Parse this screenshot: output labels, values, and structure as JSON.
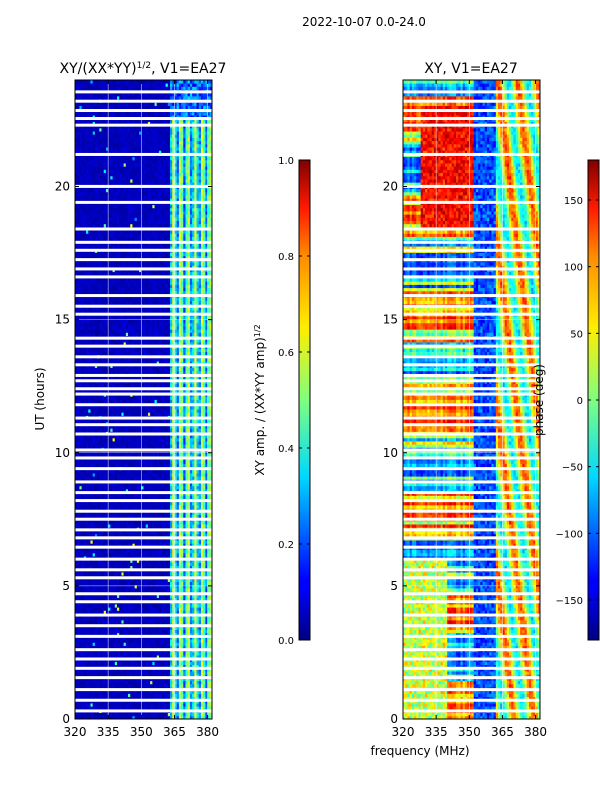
{
  "figure": {
    "suptitle": "2022-10-07 0.0-24.0"
  },
  "colors": {
    "low": "#00007f",
    "mid_low": "#0000ff",
    "cyan": "#00d8ff",
    "green": "#7fff7f",
    "yellow": "#ffee00",
    "orange": "#ff8c00",
    "high": "#7f0000",
    "gap": "#ffffff",
    "grid": "#ffffff"
  },
  "chart_data": [
    {
      "type": "heatmap",
      "title": "XY/(XX*YY)",
      "title_exp": "1/2",
      "title_suffix": ", V1=EA27",
      "xlabel": "",
      "ylabel": "UT (hours)",
      "xlim": [
        320,
        382
      ],
      "ylim": [
        0,
        24
      ],
      "xticks": [
        "320",
        "335",
        "350",
        "365",
        "380"
      ],
      "xtick_values": [
        320,
        335,
        350,
        365,
        380
      ],
      "yticks": [
        "0",
        "5",
        "10",
        "15",
        "20"
      ],
      "ytick_values": [
        0,
        5,
        10,
        15,
        20
      ],
      "colorbar": {
        "label": "XY amp. / (XX*YY amp)",
        "label_exp": "1/2",
        "range": [
          0,
          1
        ],
        "ticks": [
          "0.0",
          "0.2",
          "0.4",
          "0.6",
          "0.8",
          "1.0"
        ],
        "tick_values": [
          0.0,
          0.2,
          0.4,
          0.6,
          0.8,
          1.0
        ]
      },
      "description": "Mostly low amplitude (~0.05) below 362 MHz; bright vertical stripes (0.3-0.6) between 363 and 380 MHz."
    },
    {
      "type": "heatmap",
      "title": "XY, V1=EA27",
      "xlabel": "frequency (MHz)",
      "ylabel": "",
      "xlim": [
        320,
        382
      ],
      "ylim": [
        0,
        24
      ],
      "xticks": [
        "320",
        "335",
        "350",
        "365",
        "380"
      ],
      "xtick_values": [
        320,
        335,
        350,
        365,
        380
      ],
      "yticks": [
        "0",
        "5",
        "10",
        "15",
        "20"
      ],
      "ytick_values": [
        0,
        5,
        10,
        15,
        20
      ],
      "colorbar": {
        "label": "phase (deg)",
        "range": [
          -180,
          180
        ],
        "ticks": [
          "−150",
          "−100",
          "−50",
          "0",
          "50",
          "100",
          "150"
        ],
        "tick_values": [
          -150,
          -100,
          -50,
          0,
          50,
          100,
          150
        ]
      },
      "description": "Phase varies in horizontal bands; positive (red) near 20-22 h and 330-350 MHz, negative (blue) elsewhere."
    }
  ],
  "gaps_hours": [
    23.55,
    23.2,
    22.85,
    22.55,
    22.3,
    21.2,
    20.0,
    19.4,
    18.4,
    17.9,
    17.6,
    17.25,
    16.9,
    16.6,
    15.9,
    15.5,
    15.2,
    14.3,
    14.0,
    13.6,
    13.3,
    12.9,
    12.7,
    12.4,
    12.2,
    11.8,
    11.3,
    11.05,
    10.7,
    10.1,
    9.8,
    9.4,
    8.9,
    8.5,
    8.2,
    7.8,
    7.5,
    7.1,
    6.8,
    6.45,
    6.0,
    5.6,
    5.3,
    4.7,
    4.4,
    3.9,
    3.5,
    3.1,
    2.6,
    2.25,
    1.9,
    1.55,
    1.1,
    0.7,
    0.3
  ]
}
